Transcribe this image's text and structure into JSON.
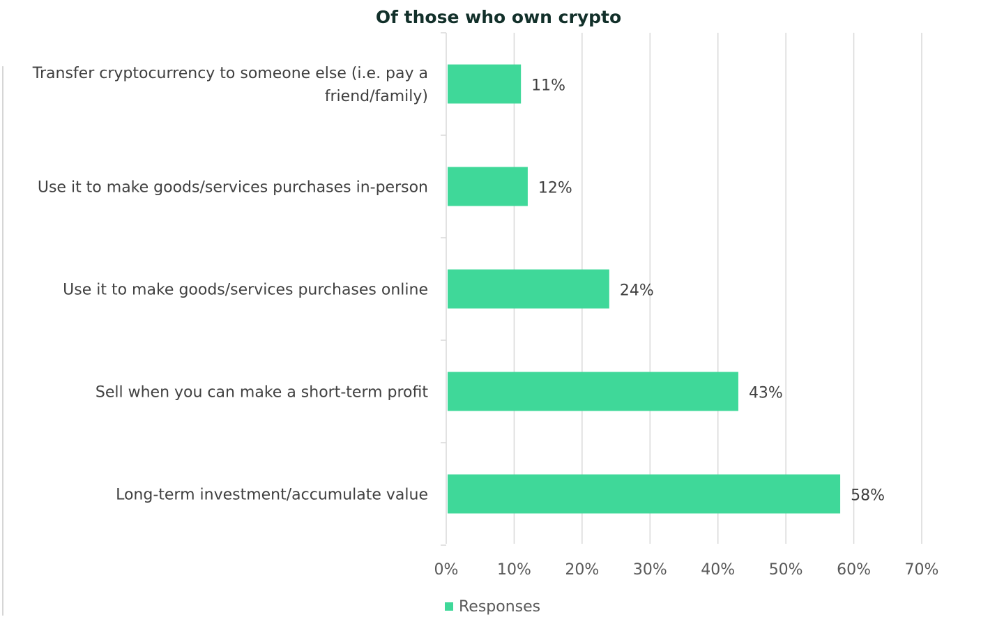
{
  "chart_data": {
    "type": "bar",
    "orientation": "horizontal",
    "title": "Of those who own crypto",
    "categories": [
      [
        "Transfer cryptocurrency to someone else (i.e. pay a",
        "friend/family)"
      ],
      [
        "Use it to make goods/services purchases in-person"
      ],
      [
        "Use it to make goods/services purchases online"
      ],
      [
        "Sell when you can make a short-term profit"
      ],
      [
        "Long-term investment/accumulate value"
      ]
    ],
    "series": [
      {
        "name": "Responses",
        "values": [
          11,
          12,
          24,
          43,
          58
        ],
        "labels": [
          "11%",
          "12%",
          "24%",
          "43%",
          "58%"
        ],
        "color": "#3fd899"
      }
    ],
    "xlim": [
      0,
      70
    ],
    "xticks": [
      0,
      10,
      20,
      30,
      40,
      50,
      60,
      70
    ],
    "xtick_labels": [
      "0%",
      "10%",
      "20%",
      "30%",
      "40%",
      "50%",
      "60%",
      "70%"
    ],
    "grid": "vertical",
    "legend": "bottom"
  }
}
